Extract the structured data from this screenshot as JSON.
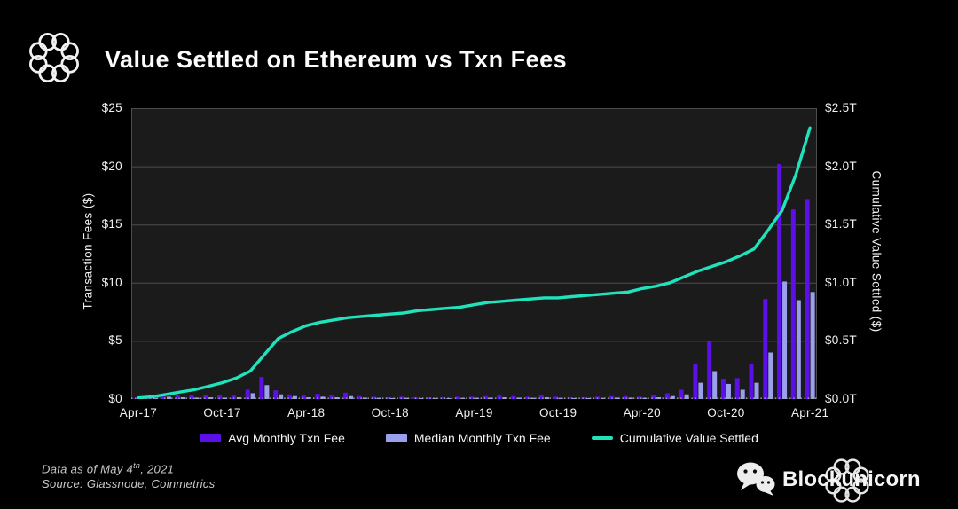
{
  "header": {
    "title": "Value Settled on Ethereum vs Txn Fees"
  },
  "chart_data": {
    "type": "bar",
    "subtype": "combo-bar-line-dual-axis",
    "title": "Value Settled on Ethereum vs Txn Fees",
    "categories": [
      "Apr-17",
      "May-17",
      "Jun-17",
      "Jul-17",
      "Aug-17",
      "Sep-17",
      "Oct-17",
      "Nov-17",
      "Dec-17",
      "Jan-18",
      "Feb-18",
      "Mar-18",
      "Apr-18",
      "May-18",
      "Jun-18",
      "Jul-18",
      "Aug-18",
      "Sep-18",
      "Oct-18",
      "Nov-18",
      "Dec-18",
      "Jan-19",
      "Feb-19",
      "Mar-19",
      "Apr-19",
      "May-19",
      "Jun-19",
      "Jul-19",
      "Aug-19",
      "Sep-19",
      "Oct-19",
      "Nov-19",
      "Dec-19",
      "Jan-20",
      "Feb-20",
      "Mar-20",
      "Apr-20",
      "May-20",
      "Jun-20",
      "Jul-20",
      "Aug-20",
      "Sep-20",
      "Oct-20",
      "Nov-20",
      "Dec-20",
      "Jan-21",
      "Feb-21",
      "Mar-21",
      "Apr-21"
    ],
    "x_tick_labels": [
      "Apr-17",
      "Oct-17",
      "Apr-18",
      "Oct-18",
      "Apr-19",
      "Oct-19",
      "Apr-20",
      "Oct-20",
      "Apr-21"
    ],
    "series": [
      {
        "name": "Avg Monthly Txn Fee",
        "type": "bar",
        "axis": "left",
        "color": "#5a10e6",
        "values": [
          0.05,
          0.15,
          0.45,
          0.35,
          0.3,
          0.35,
          0.3,
          0.3,
          0.8,
          1.9,
          0.75,
          0.4,
          0.3,
          0.45,
          0.3,
          0.55,
          0.25,
          0.2,
          0.15,
          0.2,
          0.15,
          0.15,
          0.15,
          0.2,
          0.2,
          0.25,
          0.3,
          0.25,
          0.2,
          0.35,
          0.2,
          0.15,
          0.15,
          0.2,
          0.25,
          0.25,
          0.2,
          0.3,
          0.5,
          0.8,
          3.0,
          5.0,
          1.75,
          1.8,
          3.0,
          8.6,
          20.2,
          16.3,
          17.2
        ]
      },
      {
        "name": "Median Monthly Txn Fee",
        "type": "bar",
        "axis": "left",
        "color": "#9ba0ee",
        "values": [
          0.02,
          0.08,
          0.2,
          0.15,
          0.12,
          0.15,
          0.12,
          0.15,
          0.5,
          1.2,
          0.4,
          0.25,
          0.15,
          0.2,
          0.15,
          0.25,
          0.12,
          0.1,
          0.08,
          0.1,
          0.08,
          0.08,
          0.08,
          0.1,
          0.1,
          0.12,
          0.15,
          0.12,
          0.1,
          0.15,
          0.1,
          0.08,
          0.08,
          0.1,
          0.12,
          0.12,
          0.1,
          0.15,
          0.25,
          0.4,
          1.4,
          2.4,
          1.3,
          0.8,
          1.4,
          4.0,
          10.1,
          8.5,
          9.2
        ]
      },
      {
        "name": "Cumulative Value Settled",
        "type": "line",
        "axis": "right",
        "color": "#20e3bc",
        "values": [
          0.01,
          0.02,
          0.04,
          0.06,
          0.08,
          0.11,
          0.14,
          0.18,
          0.24,
          0.38,
          0.52,
          0.58,
          0.63,
          0.66,
          0.68,
          0.7,
          0.71,
          0.72,
          0.73,
          0.74,
          0.76,
          0.77,
          0.78,
          0.79,
          0.81,
          0.83,
          0.84,
          0.85,
          0.86,
          0.87,
          0.87,
          0.88,
          0.89,
          0.9,
          0.91,
          0.92,
          0.95,
          0.97,
          1.0,
          1.05,
          1.1,
          1.14,
          1.18,
          1.23,
          1.29,
          1.45,
          1.62,
          1.93,
          2.33
        ]
      }
    ],
    "left_axis": {
      "label": "Transaction Fees ($)",
      "min": 0,
      "max": 25,
      "step": 5,
      "tick_labels_top_to_bottom": [
        "$25",
        "$20",
        "$15",
        "$10",
        "$5",
        "$0"
      ]
    },
    "right_axis": {
      "label": "Cumulative Value Settled ($)",
      "min": 0,
      "max": 2.5,
      "step": 0.5,
      "tick_labels_top_to_bottom": [
        "$2.5T",
        "$2.0T",
        "$1.5T",
        "$1.0T",
        "$0.5T",
        "$0.0T"
      ]
    },
    "grid": true,
    "legend_position": "bottom",
    "colors": {
      "background": "#000000",
      "plot_background": "#1b1b1b",
      "gridline": "#4d4d4d",
      "baseline_dotted": "#aaaaaa",
      "text": "#f2f2f2"
    }
  },
  "footer": {
    "data_as_of_prefix": "Data as of May 4",
    "data_as_of_sup": "th",
    "data_as_of_suffix": ", 2021",
    "source": "Source: Glassnode, Coinmetrics"
  },
  "branding": {
    "wordmark": "Blockunicorn"
  }
}
